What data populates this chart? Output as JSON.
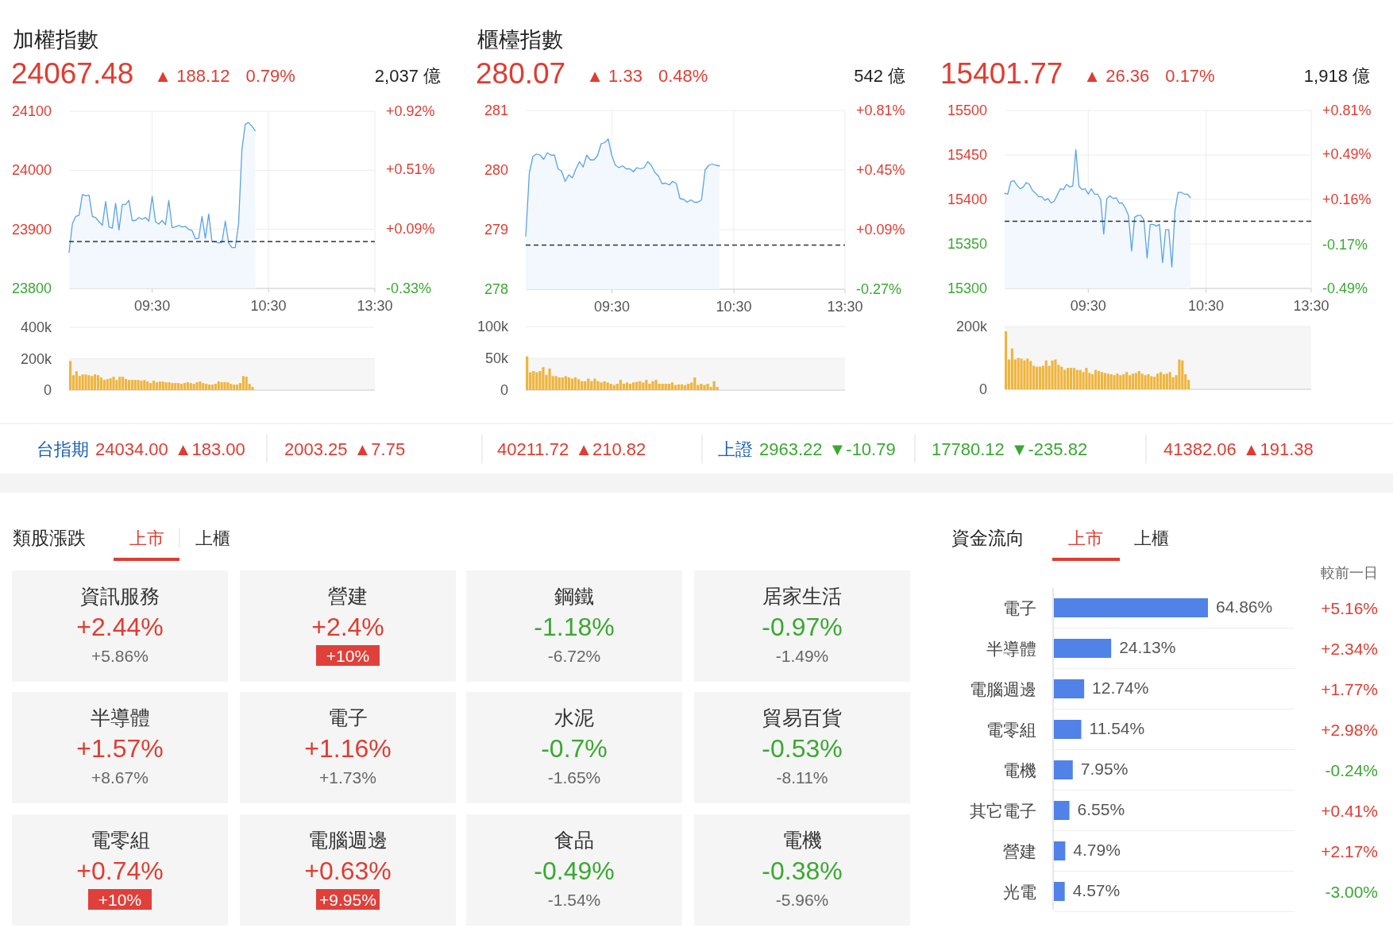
{
  "chart_data": [
    {
      "type": "area",
      "title": "加權指數",
      "subtitle": "24067.48",
      "annotations": [
        "▲ 188.12",
        "0.79%",
        "2,037 億"
      ],
      "color": "#5ba3e6",
      "grid": true,
      "ylim": [
        23800,
        24100
      ],
      "yticks": [
        23800,
        23900,
        24000,
        24100
      ],
      "y2lim": [
        -0.33,
        0.92
      ],
      "y2ticks": [
        {
          "value": -0.33,
          "label": "-0.33%"
        },
        {
          "value": 0.09,
          "label": "+0.09%"
        },
        {
          "value": 0.51,
          "label": "+0.51%"
        },
        {
          "value": 0.92,
          "label": "+0.92%"
        }
      ],
      "ref_lines": [
        {
          "axis": "y",
          "value": 23879.36,
          "color": "#333333",
          "line_style": "dashed"
        }
      ],
      "categories": [
        null,
        null,
        null,
        null,
        null,
        null,
        null,
        null,
        null,
        null,
        null,
        null,
        null,
        null,
        null,
        null,
        null,
        null,
        null,
        null,
        null,
        null,
        null,
        null,
        null,
        "09:30",
        null,
        null,
        null,
        null,
        null,
        null,
        null,
        null,
        null,
        null,
        null,
        null,
        null,
        null,
        null,
        null,
        null,
        null,
        null,
        null,
        null,
        null,
        null,
        null,
        null,
        null,
        null,
        null,
        null,
        null,
        null,
        null,
        null,
        null,
        "10:30",
        null,
        null,
        null,
        null,
        null,
        null,
        null,
        null,
        null,
        null,
        null,
        null,
        null,
        null,
        null,
        null,
        null,
        null,
        null,
        null,
        null,
        null,
        null,
        null,
        null,
        null,
        null,
        null,
        null,
        null,
        null,
        "13:30"
      ],
      "values": [
        23861,
        23910,
        23922,
        23924,
        23959,
        23957,
        23958,
        23922,
        23920,
        23913,
        23907,
        23947,
        23904,
        23902,
        23944,
        23899,
        23942,
        23942,
        23949,
        23915,
        23915,
        23920,
        23917,
        23920,
        23914,
        23956,
        23913,
        23909,
        23915,
        23908,
        23949,
        23903,
        23904,
        23907,
        23904,
        23905,
        23900,
        23898,
        23884,
        23885,
        23922,
        23885,
        23926,
        23879,
        23879,
        23877,
        23878,
        23914,
        23877,
        23869,
        23869,
        23910,
        24035,
        24078,
        24081,
        24075,
        24067,
        null,
        null,
        null,
        null,
        null,
        null,
        null,
        null,
        null,
        null,
        null,
        null,
        null,
        null,
        null,
        null,
        null,
        null,
        null,
        null,
        null,
        null,
        null,
        null,
        null,
        null,
        null,
        null,
        null,
        null,
        null,
        null,
        null,
        null,
        null,
        null
      ]
    },
    {
      "type": "bar",
      "color": "#f0b43c",
      "grid": "y",
      "tick_labels": "y",
      "ylim": [
        0,
        400000
      ],
      "yticks": [
        {
          "value": 0,
          "label": "0"
        },
        {
          "value": 200000,
          "label": "200k"
        },
        {
          "value": 400000,
          "label": "400k"
        }
      ],
      "bands": [
        {
          "axis": "y",
          "from": 0,
          "to": 200000,
          "color": "#f6f6f6"
        }
      ],
      "categories": [
        null,
        null,
        null,
        null,
        null,
        null,
        null,
        null,
        null,
        null,
        null,
        null,
        null,
        null,
        null,
        null,
        null,
        null,
        null,
        null,
        null,
        null,
        null,
        null,
        null,
        null,
        null,
        null,
        null,
        null,
        null,
        null,
        null,
        null,
        null,
        null,
        null,
        null,
        null,
        null,
        null,
        null,
        null,
        null,
        null,
        null,
        null,
        null,
        null,
        null,
        null,
        null,
        null,
        null,
        null,
        null,
        null,
        null,
        null,
        null,
        null,
        null,
        null,
        null,
        null,
        null,
        null,
        null,
        null,
        null,
        null,
        null,
        null,
        null,
        null,
        null,
        null,
        null,
        null,
        null,
        null,
        null,
        null,
        null,
        null,
        null,
        null,
        null,
        null,
        null,
        null,
        null,
        null,
        null,
        null,
        null,
        null,
        null,
        null,
        null
      ],
      "values": [
        185000,
        95000,
        120000,
        90000,
        100000,
        100000,
        95000,
        90000,
        100000,
        95000,
        80000,
        65000,
        70000,
        75000,
        85000,
        65000,
        85000,
        85000,
        70000,
        65000,
        65000,
        65000,
        65000,
        60000,
        65000,
        55000,
        45000,
        60000,
        50000,
        55000,
        55000,
        50000,
        50000,
        45000,
        45000,
        45000,
        40000,
        45000,
        50000,
        45000,
        40000,
        50000,
        55000,
        45000,
        40000,
        35000,
        35000,
        40000,
        55000,
        50000,
        50000,
        50000,
        40000,
        35000,
        35000,
        45000,
        90000,
        85000,
        40000,
        20000,
        null,
        null,
        null,
        null,
        null,
        null,
        null,
        null,
        null,
        null,
        null,
        null,
        null,
        null,
        null,
        null,
        null,
        null,
        null,
        null,
        null,
        null,
        null,
        null,
        null,
        null,
        null,
        null,
        null,
        null,
        null,
        null,
        null,
        null,
        null,
        null,
        null,
        null,
        null,
        null
      ]
    },
    {
      "type": "area",
      "title": "櫃檯指數",
      "subtitle": "280.07",
      "annotations": [
        "▲ 1.33",
        "0.48%",
        "542 億"
      ],
      "color": "#5ba3e6",
      "grid": true,
      "ylim": [
        278,
        281
      ],
      "yticks": [
        278,
        279,
        280,
        281
      ],
      "y2lim": [
        -0.27,
        0.81
      ],
      "y2ticks": [
        {
          "value": -0.27,
          "label": "-0.27%"
        },
        {
          "value": 0.09,
          "label": "+0.09%"
        },
        {
          "value": 0.45,
          "label": "+0.45%"
        },
        {
          "value": 0.81,
          "label": "+0.81%"
        }
      ],
      "ref_lines": [
        {
          "axis": "y",
          "value": 278.74,
          "color": "#333333",
          "line_style": "dashed"
        }
      ],
      "categories": [
        null,
        null,
        null,
        null,
        null,
        null,
        null,
        null,
        null,
        null,
        null,
        null,
        null,
        null,
        null,
        null,
        null,
        null,
        null,
        null,
        null,
        null,
        null,
        null,
        "09:30",
        null,
        null,
        null,
        null,
        null,
        null,
        null,
        null,
        null,
        null,
        null,
        null,
        null,
        null,
        null,
        null,
        null,
        null,
        null,
        null,
        null,
        null,
        null,
        null,
        null,
        null,
        null,
        null,
        null,
        null,
        null,
        null,
        null,
        "10:30",
        null,
        null,
        null,
        null,
        null,
        null,
        null,
        null,
        null,
        null,
        null,
        null,
        null,
        null,
        null,
        null,
        null,
        null,
        null,
        null,
        null,
        null,
        null,
        null,
        null,
        null,
        null,
        null,
        null,
        null,
        "13:30"
      ],
      "values": [
        278.89,
        279.95,
        280.23,
        280.27,
        280.25,
        280.18,
        280.29,
        280.25,
        280.25,
        280.02,
        279.98,
        279.81,
        279.92,
        279.87,
        280.02,
        280.14,
        280.05,
        280.25,
        280.17,
        280.17,
        280.24,
        280.44,
        280.46,
        280.52,
        280.24,
        280.08,
        280.04,
        280.07,
        280.02,
        280.02,
        279.97,
        280.04,
        280.02,
        280.04,
        280.14,
        280.08,
        279.96,
        279.9,
        279.77,
        279.78,
        279.75,
        279.81,
        279.77,
        279.52,
        279.51,
        279.46,
        279.5,
        279.46,
        279.46,
        279.5,
        280,
        280.08,
        280.1,
        280.08,
        280.07,
        null,
        null,
        null,
        null,
        null,
        null,
        null,
        null,
        null,
        null,
        null,
        null,
        null,
        null,
        null,
        null,
        null,
        null,
        null,
        null,
        null,
        null,
        null,
        null,
        null,
        null,
        null,
        null,
        null,
        null,
        null,
        null,
        null,
        null,
        null
      ]
    },
    {
      "type": "bar",
      "color": "#f0b43c",
      "grid": "y",
      "tick_labels": "y",
      "ylim": [
        0,
        100000
      ],
      "yticks": [
        {
          "value": 0,
          "label": "0"
        },
        {
          "value": 50000,
          "label": "50k"
        },
        {
          "value": 100000,
          "label": "100k"
        }
      ],
      "bands": [
        {
          "axis": "y",
          "from": 0,
          "to": 50000,
          "color": "#f6f6f6"
        }
      ],
      "categories": [
        null,
        null,
        null,
        null,
        null,
        null,
        null,
        null,
        null,
        null,
        null,
        null,
        null,
        null,
        null,
        null,
        null,
        null,
        null,
        null,
        null,
        null,
        null,
        null,
        null,
        null,
        null,
        null,
        null,
        null,
        null,
        null,
        null,
        null,
        null,
        null,
        null,
        null,
        null,
        null,
        null,
        null,
        null,
        null,
        null,
        null,
        null,
        null,
        null,
        null,
        null,
        null,
        null,
        null,
        null,
        null,
        null,
        null,
        null,
        null,
        null,
        null,
        null,
        null,
        null,
        null,
        null,
        null,
        null,
        null,
        null,
        null,
        null,
        null,
        null,
        null,
        null,
        null,
        null,
        null,
        null,
        null,
        null,
        null,
        null,
        null,
        null,
        null,
        null,
        null,
        null,
        null,
        null,
        null,
        null,
        null,
        null,
        null,
        null,
        null
      ],
      "values": [
        53000,
        28000,
        30000,
        28000,
        30000,
        36000,
        24000,
        34000,
        22000,
        22000,
        20000,
        20000,
        22000,
        20000,
        18000,
        20000,
        17000,
        14000,
        14000,
        18000,
        14000,
        18000,
        14000,
        12000,
        14000,
        12000,
        10000,
        8000,
        10000,
        16000,
        10000,
        12000,
        10000,
        12000,
        13000,
        14000,
        12000,
        16000,
        10000,
        14000,
        16000,
        10000,
        10000,
        10000,
        10000,
        12000,
        8000,
        9000,
        9000,
        8000,
        10000,
        12000,
        20000,
        8000,
        10000,
        8000,
        10000,
        5000,
        14000,
        5000,
        null,
        null,
        null,
        null,
        null,
        null,
        null,
        null,
        null,
        null,
        null,
        null,
        null,
        null,
        null,
        null,
        null,
        null,
        null,
        null,
        null,
        null,
        null,
        null,
        null,
        null,
        null,
        null,
        null,
        null,
        null,
        null,
        null,
        null,
        null,
        null,
        null,
        null,
        null,
        null
      ]
    },
    {
      "type": "area",
      "subtitle": "15401.77",
      "annotations": [
        "▲ 26.36",
        "0.17%",
        "1,918 億"
      ],
      "color": "#5ba3e6",
      "grid": true,
      "ylim": [
        15300,
        15500
      ],
      "yticks": [
        15300,
        15350,
        15400,
        15450,
        15500
      ],
      "y2lim": [
        -0.49,
        0.81
      ],
      "y2ticks": [
        {
          "value": -0.49,
          "label": "-0.49%"
        },
        {
          "value": -0.17,
          "label": "-0.17%"
        },
        {
          "value": 0.16,
          "label": "+0.16%"
        },
        {
          "value": 0.49,
          "label": "+0.49%"
        },
        {
          "value": 0.81,
          "label": "+0.81%"
        }
      ],
      "ref_lines": [
        {
          "axis": "y",
          "value": 15375.41,
          "color": "#333333",
          "line_style": "dashed"
        }
      ],
      "categories": [
        null,
        null,
        null,
        null,
        null,
        null,
        null,
        null,
        null,
        null,
        null,
        null,
        null,
        null,
        null,
        null,
        null,
        null,
        null,
        null,
        null,
        null,
        null,
        null,
        null,
        null,
        null,
        "09:30",
        null,
        null,
        null,
        null,
        null,
        null,
        null,
        null,
        null,
        null,
        null,
        null,
        null,
        null,
        null,
        null,
        null,
        null,
        null,
        null,
        null,
        null,
        null,
        null,
        null,
        null,
        null,
        null,
        null,
        null,
        null,
        null,
        null,
        null,
        null,
        null,
        null,
        "10:30",
        null,
        null,
        null,
        null,
        null,
        null,
        null,
        null,
        null,
        null,
        null,
        null,
        null,
        null,
        null,
        null,
        null,
        null,
        null,
        null,
        null,
        null,
        null,
        null,
        null,
        null,
        null,
        null,
        null,
        null,
        null,
        null,
        null,
        "13:30"
      ],
      "values": [
        15407,
        15406,
        15420,
        15421,
        15416,
        15412,
        15414,
        15419,
        15417,
        15410,
        15407,
        15403,
        15403,
        15399,
        15401,
        15396,
        15398,
        15405,
        15412,
        15411,
        15417,
        15414,
        15415,
        15456,
        15415,
        15411,
        15412,
        15406,
        15412,
        15406,
        15406,
        15400,
        15361,
        15401,
        15404,
        15401,
        15402,
        15396,
        15396,
        15390,
        15382,
        15342,
        15380,
        15382,
        15382,
        15377,
        15334,
        15372,
        15372,
        15370,
        15372,
        15329,
        15366,
        15366,
        15324,
        15387,
        15408,
        15408,
        15406,
        15406,
        15402,
        null,
        null,
        null,
        null,
        null,
        null,
        null,
        null,
        null,
        null,
        null,
        null,
        null,
        null,
        null,
        null,
        null,
        null,
        null,
        null,
        null,
        null,
        null,
        null,
        null,
        null,
        null,
        null,
        null,
        null,
        null,
        null,
        null,
        null,
        null,
        null,
        null,
        null,
        null
      ]
    },
    {
      "type": "bar",
      "color": "#f0b43c",
      "grid": "y",
      "tick_labels": "y",
      "ylim": [
        0,
        200000
      ],
      "yticks": [
        {
          "value": 0,
          "label": "0"
        },
        {
          "value": 200000,
          "label": "200k"
        }
      ],
      "bands": [
        {
          "axis": "y",
          "from": 0,
          "to": 200000,
          "color": "#f6f6f6"
        }
      ],
      "categories": [
        null,
        null,
        null,
        null,
        null,
        null,
        null,
        null,
        null,
        null,
        null,
        null,
        null,
        null,
        null,
        null,
        null,
        null,
        null,
        null,
        null,
        null,
        null,
        null,
        null,
        null,
        null,
        null,
        null,
        null,
        null,
        null,
        null,
        null,
        null,
        null,
        null,
        null,
        null,
        null,
        null,
        null,
        null,
        null,
        null,
        null,
        null,
        null,
        null,
        null,
        null,
        null,
        null,
        null,
        null,
        null,
        null,
        null,
        null,
        null,
        null,
        null,
        null,
        null,
        null,
        null,
        null,
        null,
        null,
        null,
        null,
        null,
        null,
        null,
        null,
        null,
        null,
        null,
        null,
        null,
        null,
        null,
        null,
        null,
        null,
        null,
        null,
        null,
        null,
        null,
        null,
        null,
        null,
        null,
        null,
        null,
        null,
        null,
        null,
        null
      ],
      "values": [
        185000,
        95000,
        130000,
        95000,
        100000,
        98000,
        92000,
        98000,
        90000,
        75000,
        72000,
        72000,
        75000,
        92000,
        75000,
        92000,
        95000,
        78000,
        72000,
        62000,
        68000,
        68000,
        68000,
        62000,
        62000,
        55000,
        68000,
        52000,
        48000,
        62000,
        58000,
        55000,
        52000,
        50000,
        48000,
        45000,
        50000,
        45000,
        48000,
        55000,
        45000,
        50000,
        52000,
        58000,
        50000,
        45000,
        48000,
        42000,
        40000,
        50000,
        55000,
        48000,
        50000,
        55000,
        38000,
        45000,
        95000,
        92000,
        48000,
        30000,
        null,
        null,
        null,
        null,
        null,
        null,
        null,
        null,
        null,
        null,
        null,
        null,
        null,
        null,
        null,
        null,
        null,
        null,
        null,
        null,
        null,
        null,
        null,
        null,
        null,
        null,
        null,
        null,
        null,
        null,
        null,
        null,
        null,
        null,
        null,
        null,
        null,
        null,
        null,
        null
      ]
    },
    {
      "type": "other",
      "categories": [
        "台指期",
        null,
        null,
        "上證",
        null,
        null
      ],
      "color": "#1a5fb4",
      "colors": [
        "#e03c31",
        "#e03c31",
        "#e03c31",
        "#3aa832",
        "#3aa832",
        "#e03c31"
      ],
      "annotations": [
        "24034.00",
        "▲183.00",
        "2003.25",
        "▲7.75",
        "40211.72",
        "▲210.82",
        "2963.22",
        "▼-10.79",
        "17780.12",
        "▼-235.82",
        "41382.06",
        "▲191.38"
      ]
    },
    {
      "type": "other",
      "title": "類股漲跌",
      "annotations": [
        "上市",
        "上櫃"
      ],
      "categories": [
        "資訊服務",
        "營建",
        "鋼鐵",
        "居家生活",
        "半導體",
        "電子",
        "水泥",
        "貿易百貨",
        "電零組",
        "電腦週邊",
        "食品",
        "電機"
      ],
      "series": [
        {
          "values": [
            2.44,
            2.4,
            -1.18,
            -0.97,
            1.57,
            1.16,
            -0.7,
            -0.53,
            0.74,
            0.63,
            -0.49,
            -0.38
          ],
          "value_labels": [
            "+2.44%",
            "+2.4%",
            "-1.18%",
            "-0.97%",
            "+1.57%",
            "+1.16%",
            "-0.7%",
            "-0.53%",
            "+0.74%",
            "+0.63%",
            "-0.49%",
            "-0.38%"
          ]
        },
        {
          "color": "#666666",
          "colors": [
            null,
            "#e0403a",
            null,
            null,
            null,
            null,
            null,
            null,
            "#e0403a",
            "#e0403a",
            null,
            null
          ],
          "values": [
            5.86,
            10,
            -6.72,
            -1.49,
            8.67,
            1.73,
            -1.65,
            -8.11,
            10,
            9.95,
            -1.54,
            -5.96
          ],
          "value_labels": [
            "+5.86%",
            "+10%",
            "-6.72%",
            "-1.49%",
            "+8.67%",
            "+1.73%",
            "-1.65%",
            "-8.11%",
            "+10%",
            "+9.95%",
            "-1.54%",
            "-5.96%"
          ]
        }
      ]
    },
    {
      "type": "bar",
      "orientation": "horizontal",
      "data_labels": true,
      "title": "資金流向",
      "annotations": [
        "上市",
        "上櫃"
      ],
      "categories": [
        "電子",
        "半導體",
        "電腦週邊",
        "電零組",
        "電機",
        "其它電子",
        "營建",
        "光電"
      ],
      "series": [
        {
          "color": "#5082e8",
          "values": [
            64.86,
            24.13,
            12.74,
            11.54,
            7.95,
            6.55,
            4.79,
            4.57
          ],
          "value_labels": [
            "64.86%",
            "24.13%",
            "12.74%",
            "11.54%",
            "7.95%",
            "6.55%",
            "4.79%",
            "4.57%"
          ]
        }
      ]
    },
    {
      "type": "other",
      "title": "較前一日",
      "colors": [
        "#e03c31",
        "#e03c31",
        "#e03c31",
        "#e03c31",
        "#3aa832",
        "#e03c31",
        "#e03c31",
        "#3aa832"
      ],
      "annotations": [
        "+5.16%",
        "+2.34%",
        "+1.77%",
        "+2.98%",
        "-0.24%",
        "+0.41%",
        "+2.17%",
        "-3.00%"
      ]
    }
  ]
}
